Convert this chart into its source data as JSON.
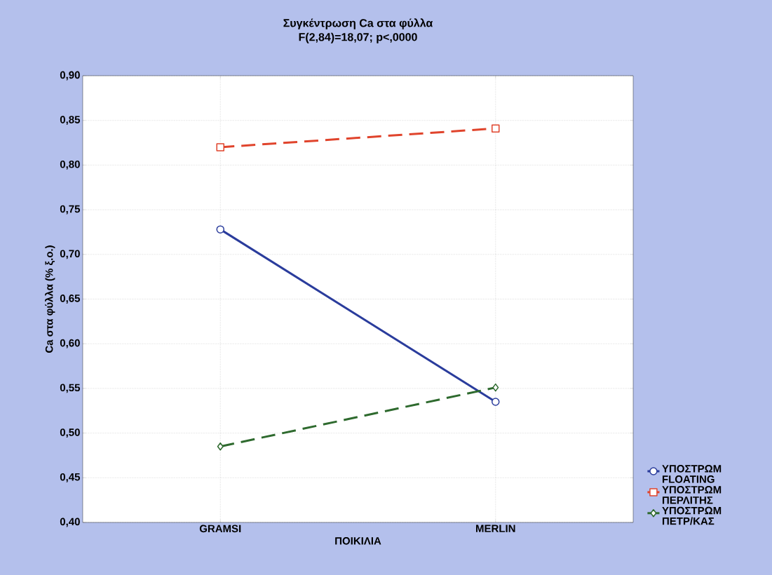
{
  "chart_data": {
    "type": "line",
    "title": "Συγκέντρωση Ca στα φύλλα",
    "subtitle": "F(2,84)=18,07; p<,0000",
    "xlabel": "ΠΟΙΚΙΛΙΑ",
    "ylabel": "Ca στα φύλλα (% ξ.ο.)",
    "categories": [
      "GRAMSI",
      "MERLIN"
    ],
    "series": [
      {
        "name": "ΥΠΟΣΤΡΩΜ FLOATING",
        "color": "#2a3c9c",
        "values": [
          0.728,
          0.535
        ],
        "marker": "circle",
        "line_style": "solid"
      },
      {
        "name": "ΥΠΟΣΤΡΩΜ ΠΕΡΛΙΤΗΣ",
        "color": "#e0442c",
        "values": [
          0.82,
          0.841
        ],
        "marker": "square",
        "line_style": "dashed"
      },
      {
        "name": "ΥΠΟΣΤΡΩΜ ΠΕΤΡ/ΚΑΣ",
        "color": "#2e6a2e",
        "values": [
          0.485,
          0.551
        ],
        "marker": "diamond",
        "line_style": "dashed"
      }
    ],
    "ylim": [
      0.4,
      0.9
    ],
    "yticks": [
      {
        "value": 0.4,
        "label": "0,40"
      },
      {
        "value": 0.45,
        "label": "0,45"
      },
      {
        "value": 0.5,
        "label": "0,50"
      },
      {
        "value": 0.55,
        "label": "0,55"
      },
      {
        "value": 0.6,
        "label": "0,60"
      },
      {
        "value": 0.65,
        "label": "0,65"
      },
      {
        "value": 0.7,
        "label": "0,70"
      },
      {
        "value": 0.75,
        "label": "0,75"
      },
      {
        "value": 0.8,
        "label": "0,80"
      },
      {
        "value": 0.85,
        "label": "0,85"
      },
      {
        "value": 0.9,
        "label": "0,90"
      }
    ],
    "grid": true,
    "legend": "right"
  }
}
